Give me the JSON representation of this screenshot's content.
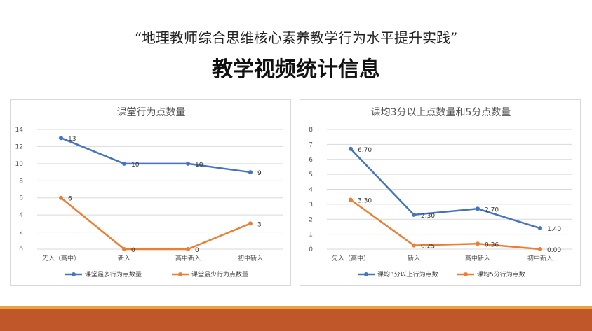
{
  "header": {
    "subtitle": "“地理教师综合思维核心素养教学行为水平提升实践”",
    "title": "教学视频统计信息"
  },
  "colors": {
    "blue": "#4472c4",
    "orange": "#ed7d31",
    "accent_bar": "#e8a43a",
    "footer_bar": "#c0572a"
  },
  "chart_data": [
    {
      "type": "line",
      "title": "课堂行为点数量",
      "categories": [
        "先入（高中）",
        "新入",
        "高中新入",
        "初中新入"
      ],
      "ylim": [
        0,
        14
      ],
      "yticks": [
        "0",
        "2",
        "4",
        "6",
        "8",
        "10",
        "12",
        "14"
      ],
      "grid": true,
      "legend": "bottom",
      "series": [
        {
          "name": "课堂最多行为点数量",
          "values": [
            13,
            10,
            10,
            9
          ],
          "labels": [
            "13",
            "10",
            "10",
            "9"
          ],
          "color": "#4472c4"
        },
        {
          "name": "课堂最少行为点数量",
          "values": [
            6,
            0,
            0,
            3
          ],
          "labels": [
            "6",
            "0",
            "0",
            "3"
          ],
          "color": "#ed7d31"
        }
      ]
    },
    {
      "type": "line",
      "title": "课均3分以上点数量和5分点数量",
      "categories": [
        "先入（高中）",
        "新入",
        "高中新入",
        "初中新入"
      ],
      "ylim": [
        0,
        8
      ],
      "yticks": [
        "0",
        "1",
        "2",
        "3",
        "4",
        "5",
        "6",
        "7",
        "8"
      ],
      "grid": true,
      "legend": "bottom",
      "series": [
        {
          "name": "课均3分以上行为点数",
          "values": [
            6.7,
            2.3,
            2.7,
            1.4
          ],
          "labels": [
            "6.70",
            "2.30",
            "2.70",
            "1.40"
          ],
          "color": "#4472c4"
        },
        {
          "name": "课均5分行为点数",
          "values": [
            3.3,
            0.25,
            0.36,
            0.0
          ],
          "labels": [
            "3.30",
            "0.25",
            "0.36",
            "0.00"
          ],
          "color": "#ed7d31"
        }
      ]
    }
  ]
}
